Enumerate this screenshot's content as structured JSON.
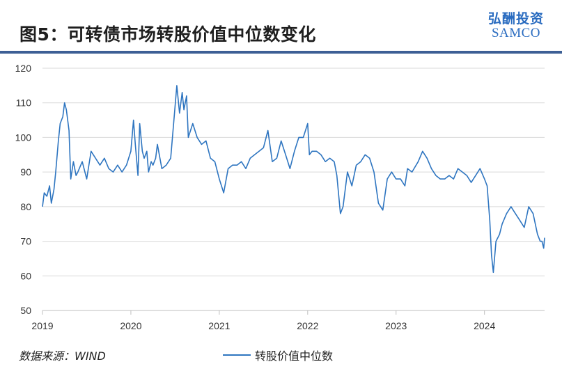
{
  "title": "图5：可转债市场转股价值中位数变化",
  "logo": {
    "chinese": "弘酬投资",
    "english": "SAMCO"
  },
  "source_label": "数据来源：WIND",
  "colors": {
    "line": "#2e75c0",
    "grid": "#d9d9d9",
    "title_rule": "#3d5f95",
    "logo": "#2a6cc0"
  },
  "chart_data": {
    "type": "line",
    "title": "",
    "xlabel": "",
    "ylabel": "",
    "ylim": [
      50,
      120
    ],
    "yticks": [
      50,
      60,
      70,
      80,
      90,
      100,
      110,
      120
    ],
    "xlim": [
      2019.0,
      2024.68
    ],
    "xticks": [
      {
        "value": 2019,
        "label": "2019"
      },
      {
        "value": 2020,
        "label": "2020"
      },
      {
        "value": 2021,
        "label": "2021"
      },
      {
        "value": 2022,
        "label": "2022"
      },
      {
        "value": 2023,
        "label": "2023"
      },
      {
        "value": 2024,
        "label": "2024"
      }
    ],
    "grid": true,
    "legend_position": "bottom-center",
    "series": [
      {
        "name": "转股价值中位数",
        "x": [
          2019.0,
          2019.02,
          2019.05,
          2019.08,
          2019.1,
          2019.13,
          2019.15,
          2019.18,
          2019.2,
          2019.23,
          2019.25,
          2019.27,
          2019.3,
          2019.32,
          2019.35,
          2019.38,
          2019.4,
          2019.45,
          2019.5,
          2019.55,
          2019.6,
          2019.65,
          2019.7,
          2019.75,
          2019.8,
          2019.85,
          2019.9,
          2019.95,
          2020.0,
          2020.03,
          2020.05,
          2020.08,
          2020.1,
          2020.13,
          2020.15,
          2020.18,
          2020.2,
          2020.23,
          2020.25,
          2020.28,
          2020.3,
          2020.35,
          2020.4,
          2020.45,
          2020.5,
          2020.52,
          2020.55,
          2020.58,
          2020.6,
          2020.63,
          2020.65,
          2020.7,
          2020.75,
          2020.8,
          2020.85,
          2020.9,
          2020.95,
          2021.0,
          2021.05,
          2021.1,
          2021.15,
          2021.2,
          2021.25,
          2021.3,
          2021.35,
          2021.4,
          2021.45,
          2021.5,
          2021.55,
          2021.6,
          2021.65,
          2021.7,
          2021.75,
          2021.8,
          2021.85,
          2021.9,
          2021.95,
          2022.0,
          2022.02,
          2022.05,
          2022.1,
          2022.15,
          2022.2,
          2022.25,
          2022.3,
          2022.33,
          2022.37,
          2022.4,
          2022.45,
          2022.5,
          2022.55,
          2022.6,
          2022.65,
          2022.7,
          2022.75,
          2022.8,
          2022.85,
          2022.9,
          2022.95,
          2023.0,
          2023.05,
          2023.1,
          2023.13,
          2023.18,
          2023.25,
          2023.3,
          2023.35,
          2023.4,
          2023.45,
          2023.5,
          2023.55,
          2023.6,
          2023.65,
          2023.7,
          2023.75,
          2023.8,
          2023.85,
          2023.9,
          2023.95,
          2024.0,
          2024.03,
          2024.06,
          2024.08,
          2024.1,
          2024.13,
          2024.17,
          2024.2,
          2024.25,
          2024.3,
          2024.35,
          2024.4,
          2024.45,
          2024.5,
          2024.55,
          2024.6,
          2024.63,
          2024.65,
          2024.67,
          2024.68
        ],
        "values": [
          80,
          84,
          83,
          86,
          81,
          85,
          90,
          99,
          104,
          106,
          110,
          108,
          102,
          88,
          93,
          89,
          90,
          93,
          88,
          96,
          94,
          92,
          94,
          91,
          90,
          92,
          90,
          92,
          96,
          105,
          98,
          89,
          104,
          96,
          94,
          96,
          90,
          93,
          92,
          94,
          98,
          91,
          92,
          94,
          109,
          115,
          107,
          113,
          108,
          112,
          100,
          104,
          100,
          98,
          99,
          94,
          93,
          88,
          84,
          91,
          92,
          92,
          93,
          91,
          94,
          95,
          96,
          97,
          102,
          93,
          94,
          99,
          95,
          91,
          96,
          100,
          100,
          104,
          95,
          96,
          96,
          95,
          93,
          94,
          93,
          89,
          78,
          80,
          90,
          86,
          92,
          93,
          95,
          94,
          90,
          81,
          79,
          88,
          90,
          88,
          88,
          86,
          91,
          90,
          93,
          96,
          94,
          91,
          89,
          88,
          88,
          89,
          88,
          91,
          90,
          89,
          87,
          89,
          91,
          88,
          86,
          76,
          66,
          61,
          70,
          72,
          75,
          78,
          80,
          78,
          76,
          74,
          80,
          78,
          72,
          70,
          70,
          68,
          71
        ]
      }
    ]
  }
}
